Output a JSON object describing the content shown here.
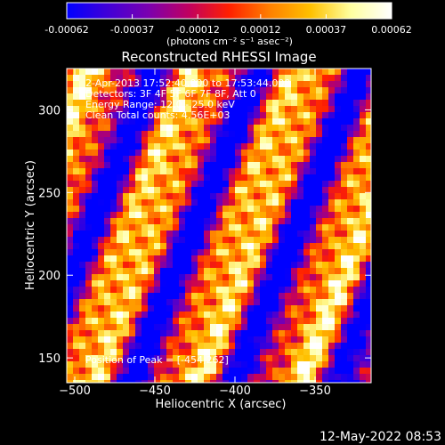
{
  "chart_data": {
    "type": "heatmap",
    "title": "Reconstructed RHESSI Image",
    "xlabel": "Heliocentric X (arcsec)",
    "ylabel": "Heliocentric Y (arcsec)",
    "xlim": [
      -505,
      -315
    ],
    "ylim": [
      135,
      325
    ],
    "x_ticks": [
      -500,
      -450,
      -400,
      -350
    ],
    "y_ticks": [
      150,
      200,
      250,
      300
    ],
    "colorbar": {
      "range": [
        -0.00062,
        0.00062
      ],
      "tick_values": [
        -0.00062,
        -0.00037,
        -0.00012,
        0.00012,
        0.00037,
        0.00062
      ],
      "tick_labels": [
        "-0.00062",
        "-0.00037",
        "-0.00012",
        "0.00012",
        "0.00037",
        "0.00062"
      ],
      "units_label": "(photons cm⁻² s⁻¹ asec⁻²)",
      "colors": [
        "#0000ff",
        "#4000d8",
        "#7a00b0",
        "#c00060",
        "#ff2000",
        "#ff8000",
        "#ffc000",
        "#ffffa0",
        "#ffffff"
      ]
    },
    "annotations": [
      "2-Apr-2013 17:52:40.000 to 17:53:44.000",
      "Detectors: 3F 4F 5F 6F 7F 8F, Att 0",
      "Energy Range: 12.0 - 25.0 keV",
      "Clean      Total counts: 4.56E+03"
    ],
    "peak_label": "Position of Peak = [-454,262]",
    "peak_position": [
      -454,
      262
    ]
  },
  "footer": {
    "timestamp": "12-May-2022 08:53"
  }
}
